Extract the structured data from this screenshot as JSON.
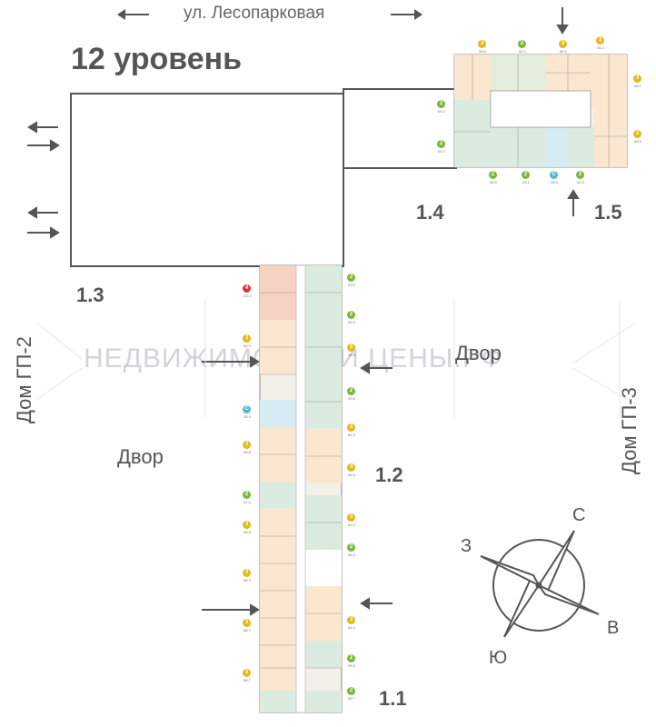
{
  "street": {
    "name": "ул. Лесопарковая"
  },
  "level_title": "12 уровень",
  "sections": {
    "s11": "1.1",
    "s12": "1.2",
    "s13": "1.3",
    "s14": "1.4",
    "s15": "1.5"
  },
  "yards": {
    "left": "Двор",
    "right": "Двор"
  },
  "neighbors": {
    "left": "Дом ГП-2",
    "right": "Дом ГП-3"
  },
  "watermark": "НЕДВИЖИМОСТЬ И ЦЕНЫ.РФ",
  "compass": {
    "north": "С",
    "east": "В",
    "south": "Ю",
    "west": "З"
  },
  "colors": {
    "studio": "#53b8cf",
    "two_room": "#7fb53a",
    "three_room": "#e9b61e",
    "four_room": "#d9363e",
    "line": "#555555"
  },
  "apartments_1_5": [
    {
      "rooms": "3",
      "area": "93.5"
    },
    {
      "rooms": "2",
      "area": "62.0"
    },
    {
      "rooms": "3",
      "area": "80.0"
    },
    {
      "rooms": "3",
      "area": "96.1"
    },
    {
      "rooms": "2",
      "area": "69.2"
    },
    {
      "rooms": "3",
      "area": "88.9"
    },
    {
      "rooms": "2",
      "area": "56.7"
    },
    {
      "rooms": "2",
      "area": "65.5"
    },
    {
      "rooms": "2",
      "area": "63.1"
    },
    {
      "rooms": "С",
      "area": "28.9"
    },
    {
      "rooms": "2",
      "area": "60.5"
    },
    {
      "rooms": "3",
      "area": "95.4"
    }
  ],
  "apartments_1_2_left": [
    {
      "rooms": "4",
      "area": "113.1"
    },
    {
      "rooms": "3",
      "area": "82.9"
    },
    {
      "rooms": "С",
      "area": "28.4"
    },
    {
      "rooms": "3",
      "area": "86.6"
    },
    {
      "rooms": "2",
      "area": "61.4"
    },
    {
      "rooms": "3",
      "area": "86.6"
    },
    {
      "rooms": "3",
      "area": "86.7"
    },
    {
      "rooms": "3",
      "area": "86.7"
    },
    {
      "rooms": "3",
      "area": "86.7"
    }
  ],
  "apartments_1_2_right": [
    {
      "rooms": "2",
      "area": "53.0"
    },
    {
      "rooms": "2",
      "area": "59.4"
    },
    {
      "rooms": "3",
      "area": "84.9"
    },
    {
      "rooms": "2",
      "area": "59.5"
    },
    {
      "rooms": "3",
      "area": "82.3"
    },
    {
      "rooms": "3",
      "area": "86.4"
    },
    {
      "rooms": "3",
      "area": "84.4"
    },
    {
      "rooms": "2",
      "area": "56.2"
    },
    {
      "rooms": "3",
      "area": "84.4"
    },
    {
      "rooms": "2",
      "area": "59.3"
    },
    {
      "rooms": "2",
      "area": "55.7"
    }
  ]
}
